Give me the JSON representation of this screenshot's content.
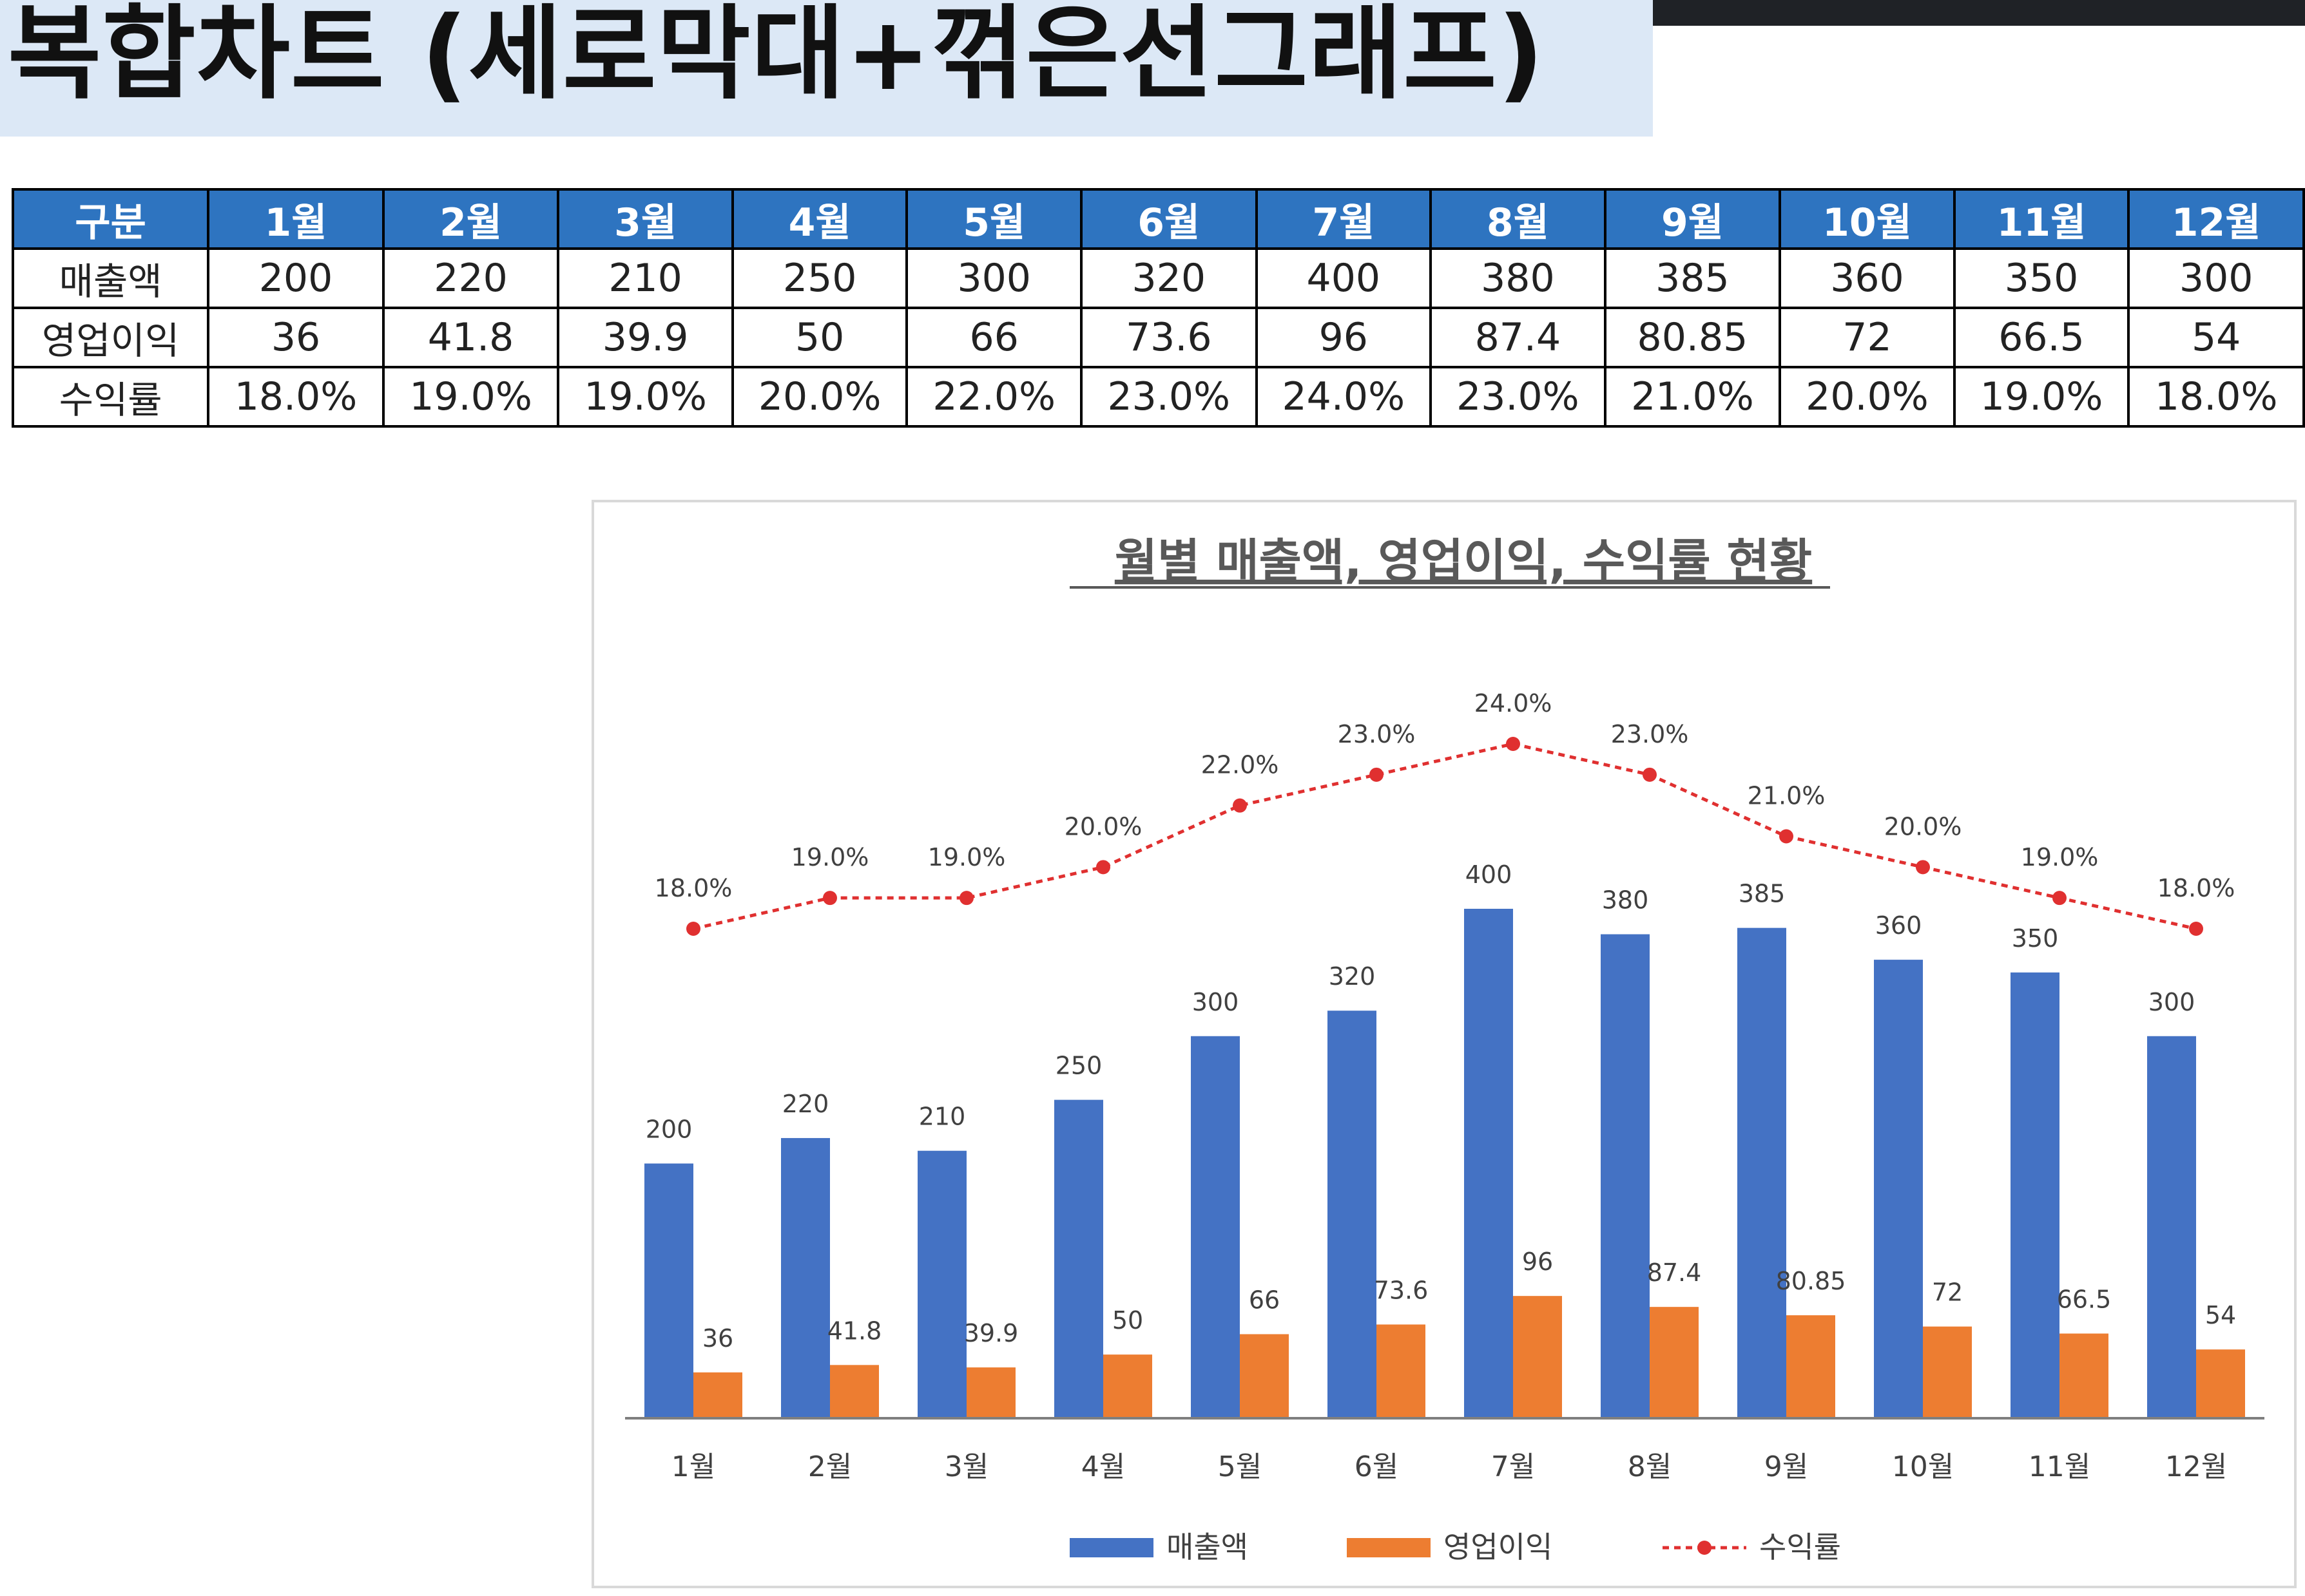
{
  "page": {
    "title": "복합차트 (세로막대+꺾은선그래프)"
  },
  "table": {
    "header": [
      "구분",
      "1월",
      "2월",
      "3월",
      "4월",
      "5월",
      "6월",
      "7월",
      "8월",
      "9월",
      "10월",
      "11월",
      "12월"
    ],
    "rows": [
      {
        "label": "매출액",
        "values": [
          "200",
          "220",
          "210",
          "250",
          "300",
          "320",
          "400",
          "380",
          "385",
          "360",
          "350",
          "300"
        ]
      },
      {
        "label": "영업이익",
        "values": [
          "36",
          "41.8",
          "39.9",
          "50",
          "66",
          "73.6",
          "96",
          "87.4",
          "80.85",
          "72",
          "66.5",
          "54"
        ]
      },
      {
        "label": "수익률",
        "values": [
          "18.0%",
          "19.0%",
          "19.0%",
          "20.0%",
          "22.0%",
          "23.0%",
          "24.0%",
          "23.0%",
          "21.0%",
          "20.0%",
          "19.0%",
          "18.0%"
        ]
      }
    ]
  },
  "chart_data": {
    "type": "bar",
    "title": "월별 매출액, 영업이익, 수익률 현황",
    "categories": [
      "1월",
      "2월",
      "3월",
      "4월",
      "5월",
      "6월",
      "7월",
      "8월",
      "9월",
      "10월",
      "11월",
      "12월"
    ],
    "series": [
      {
        "name": "매출액",
        "type": "bar",
        "color": "#4472c4",
        "values": [
          200,
          220,
          210,
          250,
          300,
          320,
          400,
          380,
          385,
          360,
          350,
          300
        ],
        "labels": [
          "200",
          "220",
          "210",
          "250",
          "300",
          "320",
          "400",
          "380",
          "385",
          "360",
          "350",
          "300"
        ]
      },
      {
        "name": "영업이익",
        "type": "bar",
        "color": "#ed7d31",
        "values": [
          36,
          41.8,
          39.9,
          50,
          66,
          73.6,
          96,
          87.4,
          80.85,
          72,
          66.5,
          54
        ],
        "labels": [
          "36",
          "41.8",
          "39.9",
          "50",
          "66",
          "73.6",
          "96",
          "87.4",
          "80.85",
          "72",
          "66.5",
          "54"
        ]
      },
      {
        "name": "수익률",
        "type": "line",
        "style": "dashed",
        "color": "#e03030",
        "axis": "secondary",
        "values": [
          18.0,
          19.0,
          19.0,
          20.0,
          22.0,
          23.0,
          24.0,
          23.0,
          21.0,
          20.0,
          19.0,
          18.0
        ],
        "labels": [
          "18.0%",
          "19.0%",
          "19.0%",
          "20.0%",
          "22.0%",
          "23.0%",
          "24.0%",
          "23.0%",
          "21.0%",
          "20.0%",
          "19.0%",
          "18.0%"
        ]
      }
    ],
    "ylim": [
      0,
      400
    ],
    "y2lim": [
      0,
      27.5
    ],
    "grid": false,
    "legend": "bottom"
  }
}
